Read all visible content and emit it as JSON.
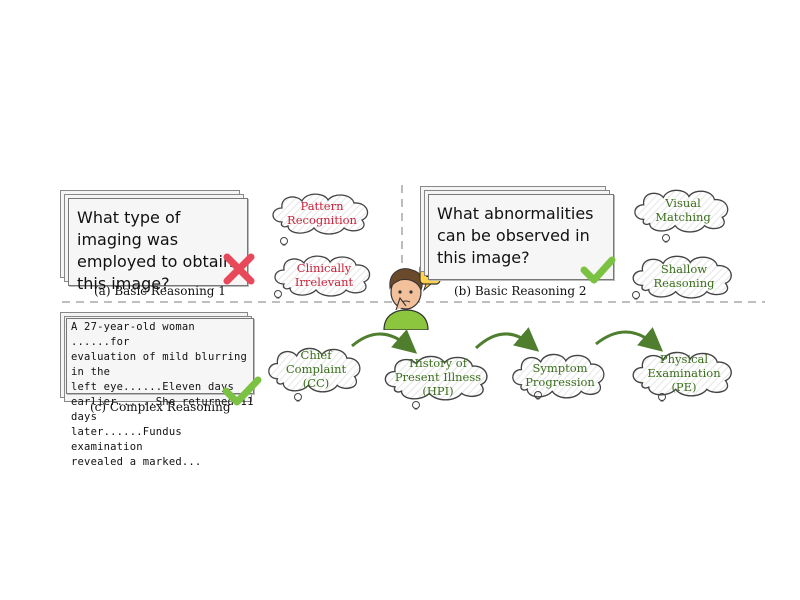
{
  "panel_a": {
    "question": "What type of imaging was employed to obtain this image?",
    "caption": "(a) Basic Reasoning 1",
    "clouds": [
      "Pattern Recognition",
      "Clinically Irrelevant"
    ]
  },
  "panel_b": {
    "question": "What abnormalities can be observed in this image?",
    "caption": "(b) Basic Reasoning 2",
    "clouds": [
      "Visual Matching",
      "Shallow Reasoning"
    ]
  },
  "panel_c": {
    "case_lines": [
      "A 27-year-old woman ......for",
      "evaluation of mild blurring in the",
      "left eye......Eleven days",
      "earlier......She returned 11 days",
      "later......Fundus examination",
      "revealed a marked..."
    ],
    "caption": "(c) Complex Reasoning",
    "steps": [
      "Chief Complaint (CC)",
      "History of Present Illness (HPI)",
      "Symptom Progression",
      "Physical Examination (PE)"
    ]
  },
  "thinker": {
    "bubble_symbol": "?"
  },
  "colors": {
    "error": "#e8495a",
    "correct": "#7cc242",
    "red_text": "#c8223a",
    "green_text": "#3a6e1c",
    "arrow": "#4f7f2e"
  },
  "icons": [
    "cross-mark-icon",
    "check-mark-icon",
    "thinking-person-icon",
    "question-bubble-icon",
    "lightbulb-icon"
  ]
}
